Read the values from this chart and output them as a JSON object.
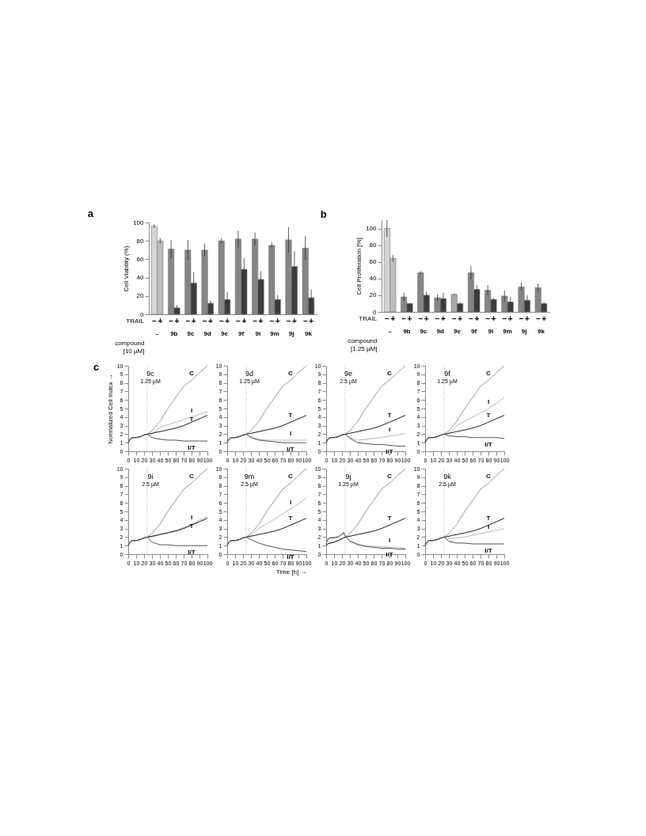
{
  "chart_data": [
    {
      "type": "bar",
      "title": "a",
      "ylabel": "Cell Viability (%)",
      "xlabel": "compound [10 µM]",
      "legend_title": "TRAIL",
      "categories": [
        "–",
        "9b",
        "9c",
        "9d",
        "9e",
        "9f",
        "9i",
        "9m",
        "9j",
        "9k"
      ],
      "ylim": [
        0,
        100
      ],
      "yticks": [
        0,
        20,
        40,
        60,
        80,
        100
      ],
      "grid": false,
      "series": [
        {
          "name": "–",
          "colors": [
            "#d4d4d4",
            "#858585",
            "#858585",
            "#858585",
            "#858585",
            "#858585",
            "#858585",
            "#858585",
            "#858585",
            "#858585"
          ],
          "values": [
            96,
            71,
            70,
            70,
            80,
            82,
            82,
            75,
            81,
            72
          ],
          "errors": [
            2,
            10,
            11,
            7,
            3,
            9,
            7,
            3,
            14,
            13
          ]
        },
        {
          "name": "+",
          "colors": [
            "#bdbdbd",
            "#3c3c3c",
            "#3c3c3c",
            "#3c3c3c",
            "#3c3c3c",
            "#3c3c3c",
            "#3c3c3c",
            "#3c3c3c",
            "#3c3c3c",
            "#3c3c3c"
          ],
          "values": [
            80,
            7,
            34,
            12,
            16,
            49,
            38,
            16,
            52,
            18
          ],
          "errors": [
            3,
            3,
            12,
            3,
            8,
            12,
            9,
            5,
            17,
            9
          ]
        }
      ]
    },
    {
      "type": "bar",
      "title": "b",
      "ylabel": "Cell Proliferation [%]",
      "xlabel": "compound [1.25 µM]",
      "legend_title": "TRAIL",
      "categories": [
        "–",
        "9b",
        "9c",
        "9d",
        "9e",
        "9f",
        "9i",
        "9m",
        "9j",
        "9k"
      ],
      "ylim": [
        0,
        110
      ],
      "yticks": [
        0,
        20,
        40,
        60,
        80,
        100
      ],
      "grid": false,
      "series": [
        {
          "name": "–",
          "colors": [
            "#d4d4d4",
            "#858585",
            "#858585",
            "#858585",
            "#a8a8a8",
            "#858585",
            "#858585",
            "#858585",
            "#858585",
            "#858585"
          ],
          "values": [
            100,
            18,
            47,
            17,
            21,
            47,
            26,
            19,
            30,
            29
          ],
          "errors": [
            10,
            5,
            2,
            4,
            1,
            8,
            6,
            7,
            5,
            5
          ]
        },
        {
          "name": "+",
          "colors": [
            "#bdbdbd",
            "#3c3c3c",
            "#3c3c3c",
            "#3c3c3c",
            "#3c3c3c",
            "#3c3c3c",
            "#3c3c3c",
            "#3c3c3c",
            "#3c3c3c",
            "#3c3c3c"
          ],
          "values": [
            64,
            10,
            20,
            16,
            10,
            27,
            15,
            12,
            14,
            10
          ],
          "errors": [
            4,
            1,
            5,
            7,
            2,
            5,
            2,
            6,
            6,
            2
          ]
        }
      ]
    },
    {
      "type": "line",
      "title": "9c",
      "subtitle": "1.25 µM",
      "ylabel": "Normalized Cell Index →",
      "annotations": [
        "c"
      ],
      "x": [
        0,
        2,
        5,
        10,
        15,
        20,
        24,
        30,
        40,
        50,
        60,
        70,
        80,
        90,
        100
      ],
      "xlim": [
        0,
        100
      ],
      "xticks": [
        0,
        10,
        20,
        30,
        40,
        50,
        60,
        70,
        80,
        90,
        100
      ],
      "ylim": [
        0,
        10
      ],
      "yticks": [
        0,
        1,
        2,
        3,
        4,
        5,
        6,
        7,
        8,
        9,
        10
      ],
      "grid": false,
      "ref_lines": [
        {
          "axis": "x",
          "value": 24,
          "line_style": "dotted"
        }
      ],
      "series": [
        {
          "name": "C",
          "color": "#9a9a9a",
          "values": [
            1.0,
            1.4,
            1.6,
            1.6,
            1.7,
            1.9,
            2.0,
            2.4,
            3.5,
            5.0,
            6.3,
            7.6,
            8.3,
            9.2,
            10
          ]
        },
        {
          "name": "I",
          "color": "#b8b8b8",
          "values": [
            1.0,
            1.4,
            1.6,
            1.6,
            1.7,
            1.9,
            2.0,
            2.0,
            2.8,
            3.1,
            3.4,
            3.7,
            4.0,
            4.3,
            4.6
          ]
        },
        {
          "name": "T",
          "color": "#1e1e1e",
          "values": [
            1.0,
            1.4,
            1.6,
            1.6,
            1.7,
            1.9,
            2.0,
            2.1,
            2.3,
            2.5,
            2.7,
            3.0,
            3.4,
            3.8,
            4.2
          ]
        },
        {
          "name": "I/T",
          "color": "#555555",
          "values": [
            1.0,
            1.4,
            1.6,
            1.6,
            1.7,
            1.9,
            2.0,
            1.6,
            1.4,
            1.3,
            1.3,
            1.2,
            1.2,
            1.2,
            1.2
          ]
        }
      ]
    },
    {
      "type": "line",
      "title": "9d",
      "subtitle": "1.25 µM",
      "x": [
        0,
        2,
        5,
        10,
        15,
        20,
        24,
        30,
        40,
        50,
        60,
        70,
        80,
        90,
        100
      ],
      "xlim": [
        0,
        100
      ],
      "xticks": [
        0,
        10,
        20,
        30,
        40,
        50,
        60,
        70,
        80,
        90,
        100
      ],
      "ylim": [
        0,
        10
      ],
      "yticks": [
        0,
        1,
        2,
        3,
        4,
        5,
        6,
        7,
        8,
        9,
        10
      ],
      "grid": false,
      "ref_lines": [
        {
          "axis": "x",
          "value": 24,
          "line_style": "dotted"
        }
      ],
      "series": [
        {
          "name": "C",
          "color": "#9a9a9a",
          "values": [
            1.0,
            1.4,
            1.6,
            1.6,
            1.7,
            1.9,
            2.0,
            2.4,
            3.5,
            5.0,
            6.3,
            7.6,
            8.3,
            9.2,
            10
          ]
        },
        {
          "name": "I",
          "color": "#b8b8b8",
          "values": [
            1.0,
            1.4,
            1.6,
            1.6,
            1.7,
            1.9,
            2.0,
            1.7,
            1.4,
            1.3,
            1.3,
            1.3,
            1.3,
            1.3,
            1.3
          ]
        },
        {
          "name": "T",
          "color": "#1e1e1e",
          "values": [
            1.0,
            1.4,
            1.6,
            1.6,
            1.7,
            1.9,
            2.0,
            2.1,
            2.3,
            2.5,
            2.7,
            3.0,
            3.4,
            3.8,
            4.2
          ]
        },
        {
          "name": "I/T",
          "color": "#555555",
          "values": [
            1.0,
            1.4,
            1.6,
            1.6,
            1.7,
            1.9,
            2.0,
            1.6,
            1.3,
            1.2,
            1.1,
            1.0,
            1.0,
            1.0,
            1.0
          ]
        }
      ]
    },
    {
      "type": "line",
      "title": "9e",
      "subtitle": "2.5 µM",
      "x": [
        0,
        2,
        5,
        10,
        15,
        20,
        24,
        30,
        40,
        50,
        60,
        70,
        80,
        90,
        100
      ],
      "xlim": [
        0,
        100
      ],
      "xticks": [
        0,
        10,
        20,
        30,
        40,
        50,
        60,
        70,
        80,
        90,
        100
      ],
      "ylim": [
        0,
        10
      ],
      "yticks": [
        0,
        1,
        2,
        3,
        4,
        5,
        6,
        7,
        8,
        9,
        10
      ],
      "grid": false,
      "ref_lines": [
        {
          "axis": "x",
          "value": 24,
          "line_style": "dotted"
        }
      ],
      "series": [
        {
          "name": "C",
          "color": "#9a9a9a",
          "values": [
            1.0,
            1.4,
            1.6,
            1.6,
            1.7,
            1.9,
            2.0,
            2.4,
            3.5,
            5.0,
            6.3,
            7.6,
            8.3,
            9.2,
            10
          ]
        },
        {
          "name": "I",
          "color": "#b8b8b8",
          "values": [
            1.0,
            1.4,
            1.6,
            1.6,
            1.7,
            1.9,
            2.0,
            1.6,
            1.3,
            1.4,
            1.5,
            1.6,
            1.8,
            1.9,
            2.1
          ]
        },
        {
          "name": "T",
          "color": "#1e1e1e",
          "values": [
            1.0,
            1.4,
            1.6,
            1.6,
            1.7,
            1.9,
            2.0,
            2.1,
            2.3,
            2.5,
            2.7,
            3.0,
            3.4,
            3.8,
            4.2
          ]
        },
        {
          "name": "I/T",
          "color": "#555555",
          "values": [
            1.0,
            1.4,
            1.6,
            1.6,
            1.7,
            1.9,
            2.0,
            1.5,
            1.0,
            0.9,
            0.8,
            0.8,
            0.7,
            0.6,
            0.6
          ]
        }
      ]
    },
    {
      "type": "line",
      "title": "9f",
      "subtitle": "1.25 µM",
      "x": [
        0,
        2,
        5,
        10,
        15,
        20,
        24,
        30,
        40,
        50,
        60,
        70,
        80,
        90,
        100
      ],
      "xlim": [
        0,
        100
      ],
      "xticks": [
        0,
        10,
        20,
        30,
        40,
        50,
        60,
        70,
        80,
        90,
        100
      ],
      "ylim": [
        0,
        10
      ],
      "yticks": [
        0,
        1,
        2,
        3,
        4,
        5,
        6,
        7,
        8,
        9,
        10
      ],
      "grid": false,
      "ref_lines": [
        {
          "axis": "x",
          "value": 24,
          "line_style": "dotted"
        }
      ],
      "series": [
        {
          "name": "C",
          "color": "#9a9a9a",
          "values": [
            1.0,
            1.4,
            1.6,
            1.6,
            1.7,
            1.9,
            2.0,
            2.4,
            3.5,
            5.0,
            6.3,
            7.6,
            8.3,
            9.2,
            10
          ]
        },
        {
          "name": "I",
          "color": "#b8b8b8",
          "values": [
            1.0,
            1.4,
            1.6,
            1.6,
            1.7,
            1.9,
            2.0,
            2.1,
            3.0,
            3.5,
            4.0,
            4.5,
            5.0,
            5.6,
            6.3
          ]
        },
        {
          "name": "T",
          "color": "#1e1e1e",
          "values": [
            1.0,
            1.4,
            1.6,
            1.6,
            1.7,
            1.9,
            2.0,
            2.1,
            2.3,
            2.5,
            2.7,
            3.0,
            3.4,
            3.8,
            4.2
          ]
        },
        {
          "name": "I/T",
          "color": "#555555",
          "values": [
            1.0,
            1.4,
            1.6,
            1.6,
            1.7,
            1.9,
            2.0,
            1.8,
            1.7,
            1.7,
            1.6,
            1.6,
            1.6,
            1.6,
            1.5
          ]
        }
      ]
    },
    {
      "type": "line",
      "title": "9i",
      "subtitle": "2.5 µM",
      "x": [
        0,
        2,
        5,
        10,
        15,
        20,
        24,
        30,
        40,
        50,
        60,
        70,
        80,
        90,
        100
      ],
      "xlim": [
        0,
        100
      ],
      "xticks": [
        0,
        10,
        20,
        30,
        40,
        50,
        60,
        70,
        80,
        90,
        100
      ],
      "ylim": [
        0,
        10
      ],
      "yticks": [
        0,
        1,
        2,
        3,
        4,
        5,
        6,
        7,
        8,
        9,
        10
      ],
      "grid": false,
      "ref_lines": [
        {
          "axis": "x",
          "value": 24,
          "line_style": "dotted"
        }
      ],
      "series": [
        {
          "name": "C",
          "color": "#9a9a9a",
          "values": [
            1.0,
            1.4,
            1.6,
            1.6,
            1.7,
            1.9,
            2.0,
            2.4,
            3.5,
            5.0,
            6.3,
            7.6,
            8.3,
            9.2,
            10
          ]
        },
        {
          "name": "I",
          "color": "#b8b8b8",
          "values": [
            1.0,
            1.4,
            1.6,
            1.6,
            1.7,
            1.9,
            2.0,
            2.0,
            2.3,
            2.5,
            2.8,
            3.1,
            3.5,
            4.0,
            4.4
          ]
        },
        {
          "name": "T",
          "color": "#1e1e1e",
          "values": [
            1.0,
            1.4,
            1.6,
            1.6,
            1.7,
            1.9,
            2.0,
            2.1,
            2.3,
            2.5,
            2.7,
            3.0,
            3.4,
            3.8,
            4.2
          ]
        },
        {
          "name": "I/T",
          "color": "#555555",
          "values": [
            1.0,
            1.4,
            1.6,
            1.6,
            1.7,
            1.9,
            2.0,
            1.4,
            1.1,
            1.1,
            1.0,
            1.0,
            1.0,
            1.0,
            1.0
          ]
        }
      ]
    },
    {
      "type": "line",
      "title": "9m",
      "subtitle": "2.5 µM",
      "xlabel": "Time [h] →",
      "x": [
        0,
        2,
        5,
        10,
        15,
        20,
        24,
        30,
        40,
        50,
        60,
        70,
        80,
        90,
        100
      ],
      "xlim": [
        0,
        100
      ],
      "xticks": [
        0,
        10,
        20,
        30,
        40,
        50,
        60,
        70,
        80,
        90,
        100
      ],
      "ylim": [
        0,
        10
      ],
      "yticks": [
        0,
        1,
        2,
        3,
        4,
        5,
        6,
        7,
        8,
        9,
        10
      ],
      "grid": false,
      "ref_lines": [
        {
          "axis": "x",
          "value": 24,
          "line_style": "dotted"
        }
      ],
      "series": [
        {
          "name": "C",
          "color": "#9a9a9a",
          "values": [
            1.0,
            1.4,
            1.6,
            1.6,
            1.7,
            1.9,
            2.0,
            2.4,
            3.5,
            5.0,
            6.3,
            7.6,
            8.3,
            9.2,
            10
          ]
        },
        {
          "name": "I",
          "color": "#b8b8b8",
          "values": [
            1.0,
            1.4,
            1.6,
            1.6,
            1.7,
            1.9,
            2.0,
            2.2,
            3.0,
            3.6,
            4.1,
            4.7,
            5.3,
            5.9,
            6.6
          ]
        },
        {
          "name": "T",
          "color": "#1e1e1e",
          "values": [
            1.0,
            1.4,
            1.6,
            1.6,
            1.7,
            1.9,
            2.0,
            2.1,
            2.3,
            2.5,
            2.7,
            3.0,
            3.4,
            3.8,
            4.2
          ]
        },
        {
          "name": "I/T",
          "color": "#555555",
          "values": [
            1.0,
            1.4,
            1.6,
            1.6,
            1.7,
            1.9,
            2.0,
            1.7,
            1.3,
            1.0,
            0.8,
            0.6,
            0.5,
            0.4,
            0.3
          ]
        }
      ]
    },
    {
      "type": "line",
      "title": "9j",
      "subtitle": "1.25 µM",
      "x": [
        0,
        2,
        5,
        10,
        15,
        20,
        24,
        30,
        40,
        50,
        60,
        70,
        80,
        90,
        100
      ],
      "xlim": [
        0,
        100
      ],
      "xticks": [
        0,
        10,
        20,
        30,
        40,
        50,
        60,
        70,
        80,
        90,
        100
      ],
      "ylim": [
        0,
        10
      ],
      "yticks": [
        0,
        1,
        2,
        3,
        4,
        5,
        6,
        7,
        8,
        9,
        10
      ],
      "grid": false,
      "ref_lines": [
        {
          "axis": "x",
          "value": 24,
          "line_style": "dotted"
        }
      ],
      "series": [
        {
          "name": "C",
          "color": "#9a9a9a",
          "values": [
            1.0,
            1.2,
            1.3,
            1.4,
            1.6,
            1.8,
            2.0,
            2.4,
            3.5,
            5.0,
            6.3,
            7.6,
            8.3,
            9.2,
            10
          ]
        },
        {
          "name": "I",
          "color": "#b8b8b8",
          "x": [
            0,
            2,
            5,
            10,
            15,
            20,
            22,
            24,
            30,
            40,
            50,
            60,
            70,
            80,
            90,
            100
          ],
          "values": [
            1.3,
            1.8,
            2.0,
            2.0,
            2.1,
            2.4,
            2.6,
            2.2,
            1.6,
            1.2,
            1.0,
            0.9,
            0.9,
            0.8,
            0.8,
            0.7
          ]
        },
        {
          "name": "T",
          "color": "#1e1e1e",
          "values": [
            1.0,
            1.2,
            1.3,
            1.4,
            1.6,
            1.8,
            2.0,
            2.1,
            2.3,
            2.5,
            2.7,
            3.0,
            3.4,
            3.8,
            4.2
          ]
        },
        {
          "name": "I/T",
          "color": "#555555",
          "x": [
            0,
            2,
            5,
            10,
            15,
            20,
            22,
            24,
            30,
            40,
            50,
            60,
            70,
            80,
            90,
            100
          ],
          "values": [
            1.2,
            1.7,
            1.9,
            1.9,
            2.0,
            2.3,
            2.5,
            2.1,
            1.5,
            1.1,
            0.9,
            0.8,
            0.7,
            0.7,
            0.6,
            0.6
          ]
        }
      ]
    },
    {
      "type": "line",
      "title": "9k",
      "subtitle": "2.5 µM",
      "x": [
        0,
        2,
        5,
        10,
        15,
        20,
        24,
        30,
        40,
        50,
        60,
        70,
        80,
        90,
        100
      ],
      "xlim": [
        0,
        100
      ],
      "xticks": [
        0,
        10,
        20,
        30,
        40,
        50,
        60,
        70,
        80,
        90,
        100
      ],
      "ylim": [
        0,
        10
      ],
      "yticks": [
        0,
        1,
        2,
        3,
        4,
        5,
        6,
        7,
        8,
        9,
        10
      ],
      "grid": false,
      "ref_lines": [
        {
          "axis": "x",
          "value": 24,
          "line_style": "dotted"
        }
      ],
      "series": [
        {
          "name": "C",
          "color": "#9a9a9a",
          "values": [
            1.0,
            1.4,
            1.6,
            1.6,
            1.7,
            1.9,
            2.0,
            2.4,
            3.5,
            5.0,
            6.3,
            7.6,
            8.3,
            9.2,
            10
          ]
        },
        {
          "name": "I",
          "color": "#b8b8b8",
          "values": [
            1.0,
            1.4,
            1.6,
            1.6,
            1.7,
            1.9,
            2.0,
            1.8,
            1.9,
            2.0,
            2.2,
            2.4,
            2.6,
            2.8,
            3.0
          ]
        },
        {
          "name": "T",
          "color": "#1e1e1e",
          "values": [
            1.0,
            1.4,
            1.6,
            1.6,
            1.7,
            1.9,
            2.0,
            2.1,
            2.3,
            2.5,
            2.7,
            3.0,
            3.4,
            3.8,
            4.2
          ]
        },
        {
          "name": "I/T",
          "color": "#555555",
          "values": [
            1.0,
            1.4,
            1.6,
            1.6,
            1.7,
            1.9,
            2.0,
            1.5,
            1.3,
            1.3,
            1.2,
            1.2,
            1.2,
            1.2,
            1.2
          ]
        }
      ]
    }
  ]
}
